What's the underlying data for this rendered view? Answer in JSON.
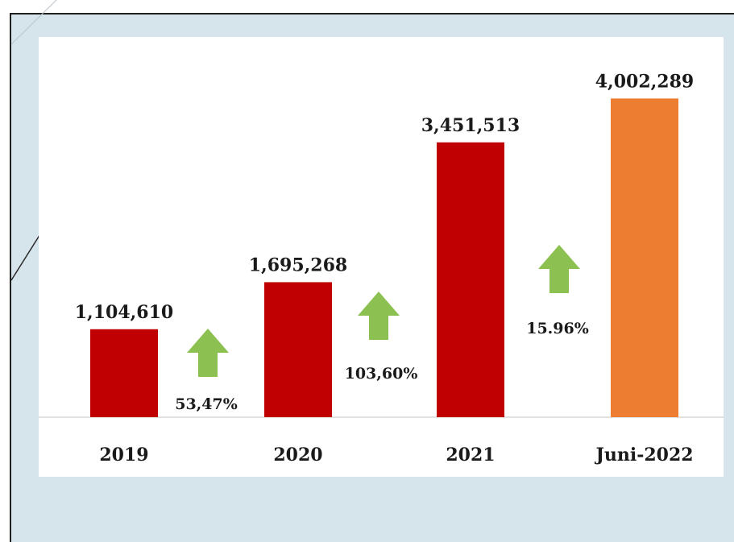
{
  "chart_data": {
    "type": "bar",
    "categories": [
      "2019",
      "2020",
      "2021",
      "Juni-2022"
    ],
    "values": [
      1104610,
      1695268,
      3451513,
      4002289
    ],
    "value_labels": [
      "1,104,610",
      "1,695,268",
      "3,451,513",
      "4,002,289"
    ],
    "bar_colors": [
      "#c00000",
      "#c00000",
      "#c00000",
      "#ed7d31"
    ],
    "growth_labels": [
      "53,47%",
      "103,60%",
      "15.96%"
    ],
    "arrow_color": "#8cc152",
    "title": "",
    "xlabel": "",
    "ylabel": "",
    "ylim": [
      0,
      4400000
    ],
    "grid": false,
    "legend": "none"
  },
  "colors": {
    "background": "#d6e4ec",
    "card": "#ffffff",
    "axis": "#e2e2e2",
    "label_text": "#1a1a1a"
  }
}
